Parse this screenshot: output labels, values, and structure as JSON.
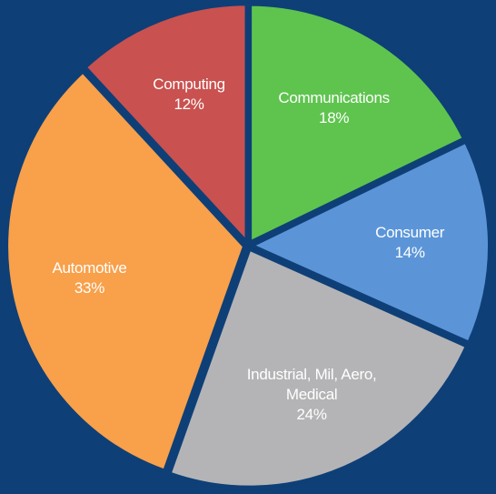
{
  "chart_data": {
    "type": "pie",
    "categories": [
      "Communications",
      "Consumer",
      "Industrial, Mil, Aero, Medical",
      "Automotive",
      "Computing"
    ],
    "values": [
      18,
      14,
      24,
      33,
      12
    ],
    "value_labels": [
      "18%",
      "14%",
      "24%",
      "33%",
      "12%"
    ],
    "colors": [
      "#5ec44e",
      "#5b95d8",
      "#b4b4b6",
      "#f8a04a",
      "#c9514f"
    ]
  }
}
